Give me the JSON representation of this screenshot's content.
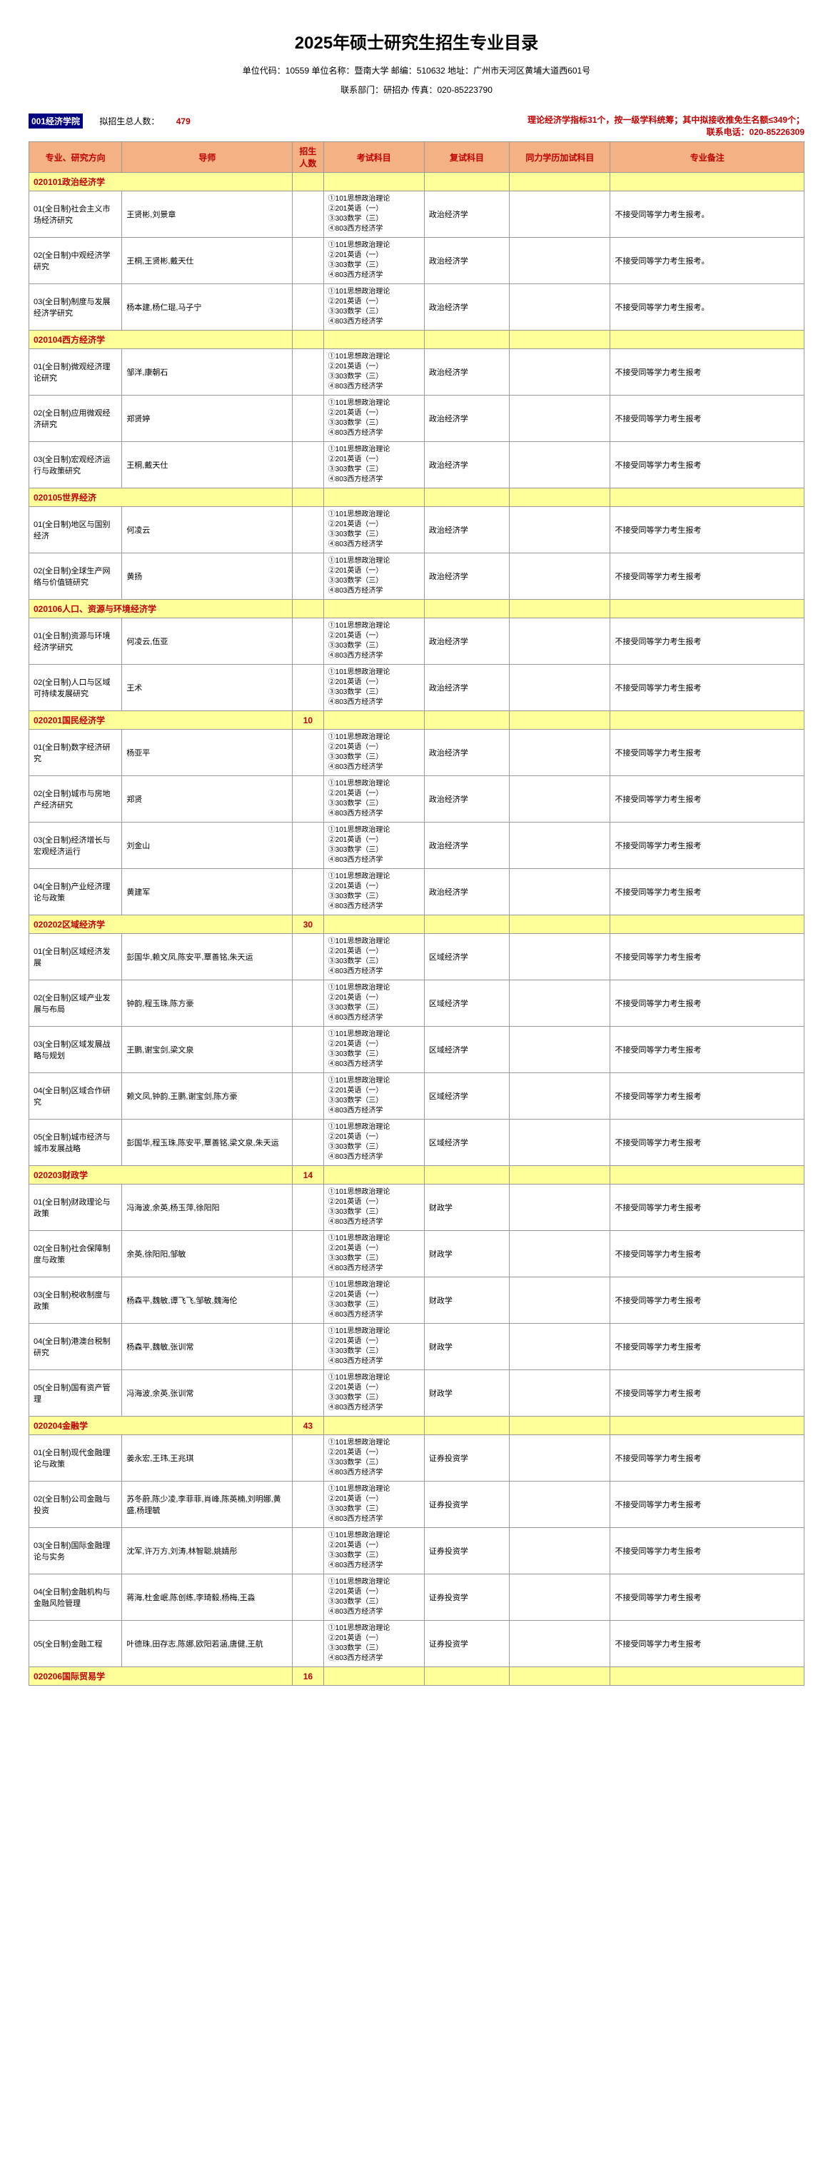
{
  "title": "2025年硕士研究生招生专业目录",
  "subtitle1": "单位代码：10559  单位名称：暨南大学  邮编：510632  地址：广州市天河区黄埔大道西601号",
  "subtitle2": "联系部门：研招办    传真：020-85223790",
  "schoolCode": "001经济学院",
  "enrollLabel": "拟招生总人数：",
  "enrollNum": "479",
  "infoRight1": "理论经济学指标31个，按一级学科统筹；其中拟接收推免生名额≤349个；",
  "infoRight2": "联系电话：020-85226309",
  "headers": {
    "major": "专业、研究方向",
    "advisor": "导师",
    "count": "招生人数",
    "exam": "考试科目",
    "retest": "复试科目",
    "same": "同力学历加试科目",
    "note": "专业备注"
  },
  "colors": {
    "headerBg": "#f4b183",
    "headerText": "#c00000",
    "categoryBg": "#ffff99",
    "categoryText": "#c00000",
    "schoolCodeBg": "#000080",
    "border": "#999999"
  },
  "examSubjects": "①101思想政治理论\n②201英语（一）\n③303数学（三）\n④803西方经济学",
  "retestSubject": "政治经济学",
  "retestSubject2": "区域经济学",
  "retestSubject3": "财政学",
  "retestSubject4": "证券投资学",
  "standardNote": "不接受同等学力考生报考",
  "standardNote2": "不接受同等学力考生报考。",
  "sections": [
    {
      "code": "020101政治经济学",
      "count": "",
      "rows": [
        {
          "major": "01(全日制)社会主义市场经济研究",
          "advisor": "王贤彬,刘景章",
          "retest": "政治经济学",
          "note": "不接受同等学力考生报考。"
        },
        {
          "major": "02(全日制)中观经济学研究",
          "advisor": "王桐,王贤彬,戴天仕",
          "retest": "政治经济学",
          "note": "不接受同等学力考生报考。"
        },
        {
          "major": "03(全日制)制度与发展经济学研究",
          "advisor": "杨本建,杨仁琨,马子宁",
          "retest": "政治经济学",
          "note": "不接受同等学力考生报考。"
        }
      ]
    },
    {
      "code": "020104西方经济学",
      "count": "",
      "rows": [
        {
          "major": "01(全日制)微观经济理论研究",
          "advisor": "邹洋,康朝石",
          "retest": "政治经济学",
          "note": "不接受同等学力考生报考"
        },
        {
          "major": "02(全日制)应用微观经济研究",
          "advisor": "郑贤婷",
          "retest": "政治经济学",
          "note": "不接受同等学力考生报考"
        },
        {
          "major": "03(全日制)宏观经济运行与政策研究",
          "advisor": "王桐,戴天仕",
          "retest": "政治经济学",
          "note": "不接受同等学力考生报考"
        }
      ]
    },
    {
      "code": "020105世界经济",
      "count": "",
      "rows": [
        {
          "major": "01(全日制)地区与国别经济",
          "advisor": "何凌云",
          "retest": "政治经济学",
          "note": "不接受同等学力考生报考"
        },
        {
          "major": "02(全日制)全球生产网络与价值链研究",
          "advisor": "黄扬",
          "retest": "政治经济学",
          "note": "不接受同等学力考生报考"
        }
      ]
    },
    {
      "code": "020106人口、资源与环境经济学",
      "count": "",
      "rows": [
        {
          "major": "01(全日制)资源与环境经济学研究",
          "advisor": "何凌云,伍亚",
          "retest": "政治经济学",
          "note": "不接受同等学力考生报考"
        },
        {
          "major": "02(全日制)人口与区域可持续发展研究",
          "advisor": "王术",
          "retest": "政治经济学",
          "note": "不接受同等学力考生报考"
        }
      ]
    },
    {
      "code": "020201国民经济学",
      "count": "10",
      "rows": [
        {
          "major": "01(全日制)数字经济研究",
          "advisor": "杨亚平",
          "retest": "政治经济学",
          "note": "不接受同等学力考生报考"
        },
        {
          "major": "02(全日制)城市与房地产经济研究",
          "advisor": "郑贤",
          "retest": "政治经济学",
          "note": "不接受同等学力考生报考"
        },
        {
          "major": "03(全日制)经济增长与宏观经济运行",
          "advisor": "刘金山",
          "retest": "政治经济学",
          "note": "不接受同等学力考生报考"
        },
        {
          "major": "04(全日制)产业经济理论与政策",
          "advisor": "黄建军",
          "retest": "政治经济学",
          "note": "不接受同等学力考生报考"
        }
      ]
    },
    {
      "code": "020202区域经济学",
      "count": "30",
      "rows": [
        {
          "major": "01(全日制)区域经济发展",
          "advisor": "彭国华,赖文凤,陈安平,覃善铭,朱天运",
          "retest": "区域经济学",
          "note": "不接受同等学力考生报考"
        },
        {
          "major": "02(全日制)区域产业发展与布局",
          "advisor": "钟韵,程玉珠,陈方豪",
          "retest": "区域经济学",
          "note": "不接受同等学力考生报考"
        },
        {
          "major": "03(全日制)区域发展战略与规划",
          "advisor": "王鹏,谢宝剑,梁文泉",
          "retest": "区域经济学",
          "note": "不接受同等学力考生报考"
        },
        {
          "major": "04(全日制)区域合作研究",
          "advisor": "赖文凤,钟韵,王鹏,谢宝剑,陈方豪",
          "retest": "区域经济学",
          "note": "不接受同等学力考生报考"
        },
        {
          "major": "05(全日制)城市经济与城市发展战略",
          "advisor": "彭国华,程玉珠,陈安平,覃善铭,梁文泉,朱天运",
          "retest": "区域经济学",
          "note": "不接受同等学力考生报考"
        }
      ]
    },
    {
      "code": "020203财政学",
      "count": "14",
      "rows": [
        {
          "major": "01(全日制)财政理论与政策",
          "advisor": "冯海波,余英,杨玉萍,徐阳阳",
          "retest": "财政学",
          "note": "不接受同等学力考生报考"
        },
        {
          "major": "02(全日制)社会保障制度与政策",
          "advisor": "余英,徐阳阳,邹敏",
          "retest": "财政学",
          "note": "不接受同等学力考生报考"
        },
        {
          "major": "03(全日制)税收制度与政策",
          "advisor": "杨森平,魏敏,谭飞飞,邹敏,魏海伦",
          "retest": "财政学",
          "note": "不接受同等学力考生报考"
        },
        {
          "major": "04(全日制)港澳台税制研究",
          "advisor": "杨森平,魏敏,张训常",
          "retest": "财政学",
          "note": "不接受同等学力考生报考"
        },
        {
          "major": "05(全日制)国有资产管理",
          "advisor": "冯海波,余英,张训常",
          "retest": "财政学",
          "note": "不接受同等学力考生报考"
        }
      ]
    },
    {
      "code": "020204金融学",
      "count": "43",
      "rows": [
        {
          "major": "01(全日制)现代金融理论与政策",
          "advisor": "姜永宏,王玮,王兆琪",
          "retest": "证券投资学",
          "note": "不接受同等学力考生报考"
        },
        {
          "major": "02(全日制)公司金融与投资",
          "advisor": "苏冬蔚,陈少凌,李菲菲,肖峰,陈英楠,刘明娜,黄盛,杨理毓",
          "retest": "证券投资学",
          "note": "不接受同等学力考生报考"
        },
        {
          "major": "03(全日制)国际金融理论与实务",
          "advisor": "沈军,许万方,刘涛,林智聪,姚婧彤",
          "retest": "证券投资学",
          "note": "不接受同等学力考生报考"
        },
        {
          "major": "04(全日制)金融机构与金融风险管理",
          "advisor": "蒋海,杜金岷,陈创练,李琦毅,杨梅,王淼",
          "retest": "证券投资学",
          "note": "不接受同等学力考生报考"
        },
        {
          "major": "05(全日制)金融工程",
          "advisor": "叶德珠,田存志,陈娜,欧阳若涵,唐健,王航",
          "retest": "证券投资学",
          "note": "不接受同等学力考生报考"
        }
      ]
    },
    {
      "code": "020206国际贸易学",
      "count": "16",
      "rows": []
    }
  ]
}
